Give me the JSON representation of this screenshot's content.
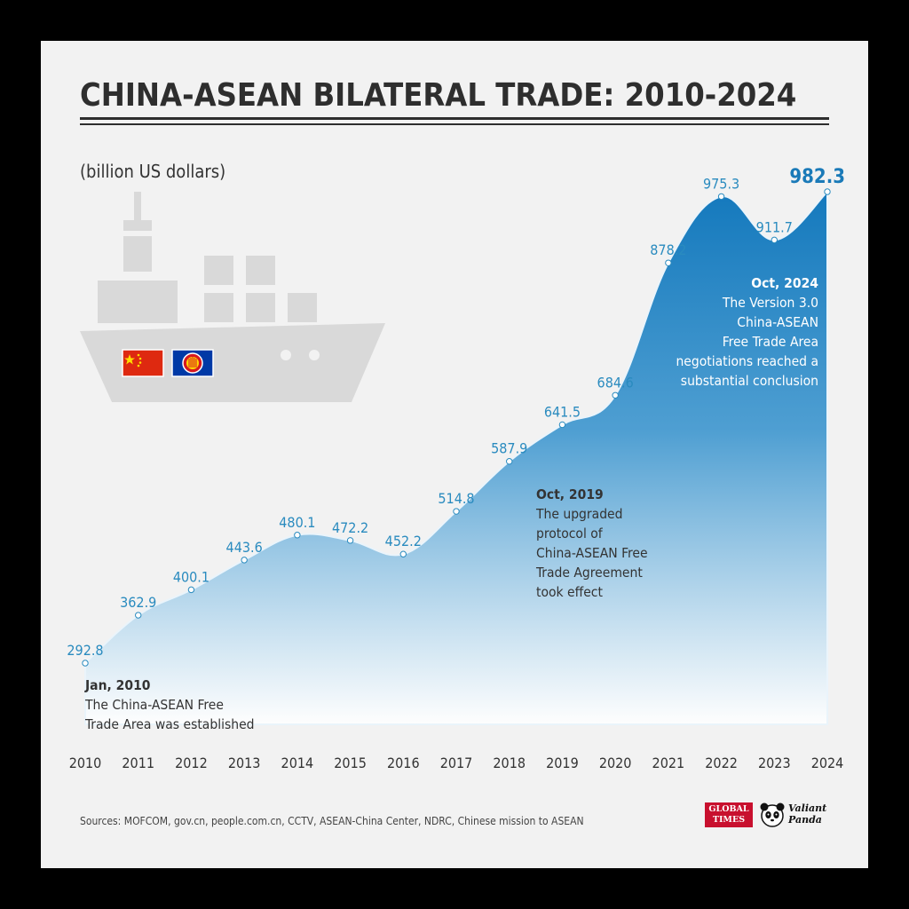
{
  "title": "CHINA-ASEAN BILATERAL TRADE: 2010-2024",
  "unit_label": "(billion US dollars)",
  "chart_data": {
    "type": "area",
    "title": "CHINA-ASEAN BILATERAL TRADE: 2010-2024",
    "ylabel": "(billion US dollars)",
    "x": [
      "2010",
      "2011",
      "2012",
      "2013",
      "2014",
      "2015",
      "2016",
      "2017",
      "2018",
      "2019",
      "2020",
      "2021",
      "2022",
      "2023",
      "2024"
    ],
    "values": [
      292.8,
      362.9,
      400.1,
      443.6,
      480.1,
      472.2,
      452.2,
      514.8,
      587.9,
      641.5,
      684.6,
      878.2,
      975.3,
      911.7,
      982.3
    ],
    "value_labels": [
      "292.8",
      "362.9",
      "400.1",
      "443.6",
      "480.1",
      "472.2",
      "452.2",
      "514.8",
      "587.9",
      "641.5",
      "684.6",
      "878.2",
      "975.3",
      "911.7",
      "982.3"
    ],
    "grid": false,
    "colors": {
      "area_top": "#1479bd",
      "area_bottom": "#ffffff",
      "label": "#2a8bbf"
    }
  },
  "annotations": [
    {
      "heading": "Jan, 2010",
      "body": "The China-ASEAN Free\nTrade Area was established"
    },
    {
      "heading": "Oct, 2019",
      "body": "The upgraded\nprotocol of\nChina-ASEAN Free\nTrade Agreement\ntook effect"
    },
    {
      "heading": "Oct, 2024",
      "body": "The Version 3.0\nChina-ASEAN\nFree Trade Area\nnegotiations reached a\nsubstantial conclusion"
    }
  ],
  "source": "Sources: MOFCOM, gov.cn, people.com.cn, CCTV, ASEAN-China Center, NDRC, Chinese mission to ASEAN",
  "logos": {
    "global_times": "GLOBAL TIMES",
    "valiant_panda": "Valiant Panda"
  },
  "illustration": {
    "icon": "cargo-ship-icon",
    "flags": [
      "china-flag-icon",
      "asean-flag-icon"
    ]
  }
}
